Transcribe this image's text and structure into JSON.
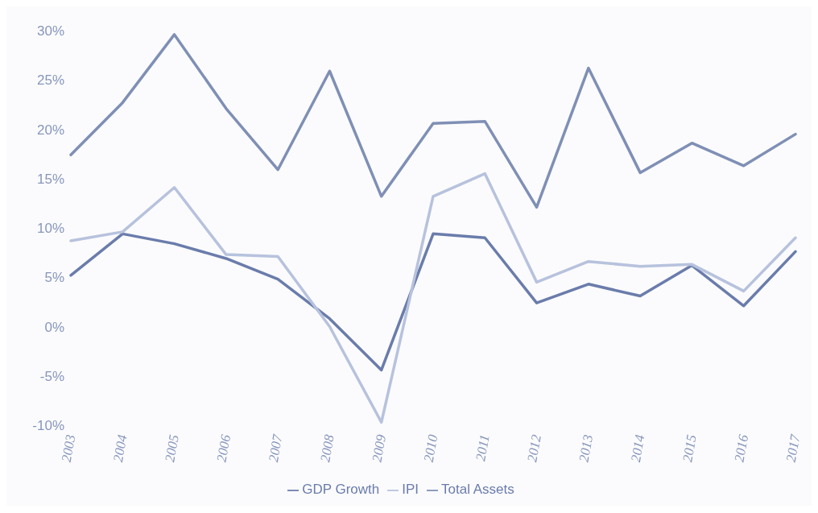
{
  "chart_data": {
    "type": "line",
    "categories": [
      "2003",
      "2004",
      "2005",
      "2006",
      "2007",
      "2008",
      "2009",
      "2010",
      "2011",
      "2012",
      "2013",
      "2014",
      "2015",
      "2016",
      "2017"
    ],
    "series": [
      {
        "name": "Total Assets",
        "color": "#7f8fb5",
        "values": [
          17.4,
          22.7,
          29.6,
          22.1,
          15.9,
          25.9,
          13.2,
          20.6,
          20.8,
          12.1,
          26.2,
          15.6,
          18.6,
          16.3,
          19.5
        ]
      },
      {
        "name": "GDP Growth",
        "color": "#6a7cab",
        "values": [
          5.2,
          9.4,
          8.4,
          6.9,
          4.8,
          0.8,
          -4.4,
          9.4,
          9.0,
          2.4,
          4.3,
          3.1,
          6.2,
          2.1,
          7.6
        ]
      },
      {
        "name": "IPI",
        "color": "#b7c2dd",
        "values": [
          8.7,
          9.6,
          14.1,
          7.3,
          7.1,
          0,
          -9.7,
          13.2,
          15.5,
          4.5,
          6.6,
          6.1,
          6.3,
          3.6,
          9.0
        ]
      }
    ],
    "ylim": [
      -10,
      30
    ],
    "yticks": [
      {
        "value": -10,
        "label": "-10%"
      },
      {
        "value": -5,
        "label": "-5%"
      },
      {
        "value": 0,
        "label": "0%"
      },
      {
        "value": 5,
        "label": "5%"
      },
      {
        "value": 10,
        "label": "10%"
      },
      {
        "value": 15,
        "label": "15%"
      },
      {
        "value": 20,
        "label": "20%"
      },
      {
        "value": 25,
        "label": "25%"
      },
      {
        "value": 30,
        "label": "30%"
      }
    ],
    "grid": false,
    "legend": "bottom",
    "marker": "none",
    "line_style": "solid"
  }
}
